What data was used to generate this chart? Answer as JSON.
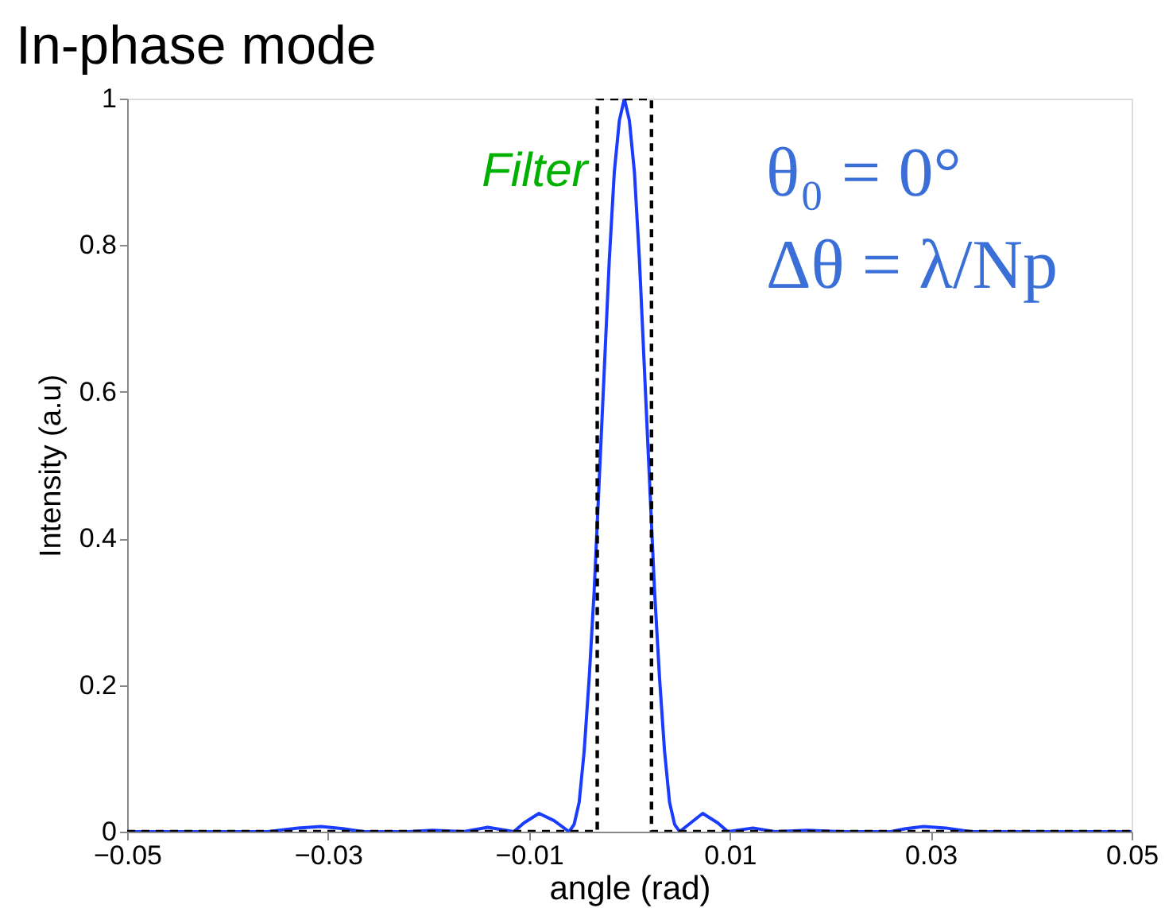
{
  "chart_data": {
    "type": "line",
    "title": "In-phase mode",
    "xlabel": "angle (rad)",
    "ylabel": "Intensity (a.u)",
    "xlim": [
      -0.05,
      0.05
    ],
    "ylim": [
      0,
      1
    ],
    "xticks": [
      {
        "value": -0.05,
        "label": "−0.05"
      },
      {
        "value": -0.03,
        "label": "−0.03"
      },
      {
        "value": -0.01,
        "label": "−0.01"
      },
      0.01,
      0.03,
      0.05
    ],
    "yticks": [
      0,
      0.2,
      0.4,
      0.6,
      0.8,
      1
    ],
    "grid": false,
    "series": [
      {
        "color": "#1a3cff",
        "line_style": "solid",
        "x": [
          -0.05,
          -0.04,
          -0.036,
          -0.033,
          -0.0307,
          -0.0285,
          -0.0265,
          -0.022,
          -0.0196,
          -0.0165,
          -0.0141,
          -0.0115,
          -0.0105,
          -0.009,
          -0.0075,
          -0.006,
          -0.0055,
          -0.005,
          -0.0045,
          -0.004,
          -0.0035,
          -0.003,
          -0.0025,
          -0.002,
          -0.0015,
          -0.001,
          -0.0005,
          0,
          0.0005,
          0.001,
          0.0015,
          0.002,
          0.0025,
          0.003,
          0.0035,
          0.004,
          0.0045,
          0.005,
          0.0062,
          0.0073,
          0.0088,
          0.0098,
          0.0123,
          0.0145,
          0.0177,
          0.021,
          0.026,
          0.0275,
          0.0293,
          0.0315,
          0.034,
          0.05
        ],
        "values": [
          0,
          0,
          0,
          0.005,
          0.007,
          0.004,
          0,
          0,
          0.002,
          0,
          0.006,
          0,
          0.012,
          0.025,
          0.015,
          0,
          0.01,
          0.04,
          0.11,
          0.21,
          0.33,
          0.48,
          0.63,
          0.78,
          0.9,
          0.97,
          1,
          0.97,
          0.9,
          0.78,
          0.63,
          0.48,
          0.33,
          0.21,
          0.11,
          0.04,
          0.01,
          0,
          0.013,
          0.025,
          0.012,
          0,
          0.005,
          0,
          0.002,
          0,
          0,
          0.004,
          0.007,
          0.005,
          0,
          0
        ]
      },
      {
        "color": "#000000",
        "line_style": "dashed",
        "x": [
          -0.05,
          -0.0032,
          -0.0032,
          0.0022,
          0.0022,
          0.05
        ],
        "values": [
          0,
          0,
          1,
          1,
          0,
          0
        ]
      }
    ],
    "annotations": [
      {
        "text": "Filter",
        "x": -0.0032,
        "y": 0.9
      },
      "θ₀ = 0°",
      "Δθ = λ/Np"
    ]
  }
}
